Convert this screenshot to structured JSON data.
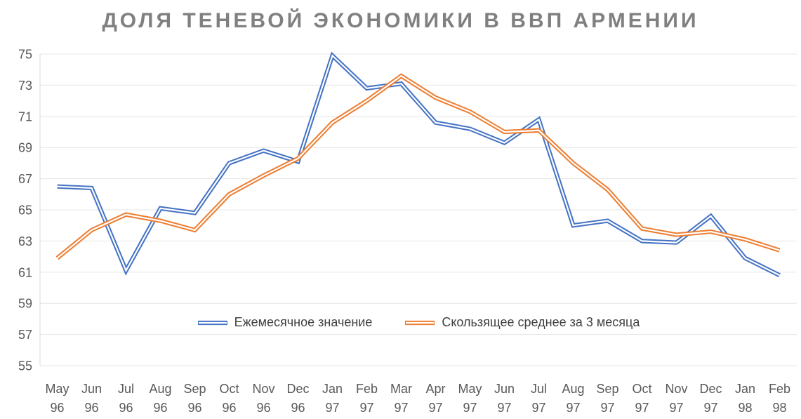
{
  "colors": {
    "background": "#FFFFFF",
    "title_text": "#808080",
    "axis_text": "#595959",
    "legend_text": "#404040",
    "gridline": "#E6E6E6",
    "axis_line": "#D9D9D9",
    "series_monthly": "#4472C4",
    "series_moving_average": "#ED7D31"
  },
  "chart_data": {
    "type": "line",
    "title": "ДОЛЯ ТЕНЕВОЙ ЭКОНОМИКИ В ВВП АРМЕНИИ",
    "xlabel": "",
    "ylabel": "",
    "ylim": [
      55,
      75
    ],
    "ytick_step": 2,
    "grid": "horizontal",
    "legend_position": "bottom-center-inside",
    "line_style": "double-stroke-with-white-core",
    "categories": [
      {
        "month": "May",
        "year": "96"
      },
      {
        "month": "Jun",
        "year": "96"
      },
      {
        "month": "Jul",
        "year": "96"
      },
      {
        "month": "Aug",
        "year": "96"
      },
      {
        "month": "Sep",
        "year": "96"
      },
      {
        "month": "Oct",
        "year": "96"
      },
      {
        "month": "Nov",
        "year": "96"
      },
      {
        "month": "Dec",
        "year": "96"
      },
      {
        "month": "Jan",
        "year": "97"
      },
      {
        "month": "Feb",
        "year": "97"
      },
      {
        "month": "Mar",
        "year": "97"
      },
      {
        "month": "Apr",
        "year": "97"
      },
      {
        "month": "May",
        "year": "97"
      },
      {
        "month": "Jun",
        "year": "97"
      },
      {
        "month": "Jul",
        "year": "97"
      },
      {
        "month": "Aug",
        "year": "97"
      },
      {
        "month": "Sep",
        "year": "97"
      },
      {
        "month": "Oct",
        "year": "97"
      },
      {
        "month": "Nov",
        "year": "97"
      },
      {
        "month": "Dec",
        "year": "97"
      },
      {
        "month": "Jan",
        "year": "98"
      },
      {
        "month": "Feb",
        "year": "98"
      }
    ],
    "series": [
      {
        "name": "Ежемесячное значение",
        "color": "#4472C4",
        "values": [
          66.5,
          66.4,
          61.1,
          65.1,
          64.8,
          68.0,
          68.8,
          68.1,
          74.9,
          72.8,
          73.1,
          70.6,
          70.2,
          69.3,
          70.8,
          64.0,
          64.3,
          63.0,
          62.9,
          64.6,
          61.9,
          60.8
        ]
      },
      {
        "name": "Скользящее среднее за 3 месяца",
        "color": "#ED7D31",
        "values": [
          61.9,
          63.7,
          64.7,
          64.3,
          63.7,
          66.0,
          67.2,
          68.3,
          70.6,
          72.0,
          73.6,
          72.2,
          71.3,
          70.0,
          70.1,
          68.0,
          66.3,
          63.8,
          63.4,
          63.6,
          63.1,
          62.4
        ]
      }
    ]
  }
}
